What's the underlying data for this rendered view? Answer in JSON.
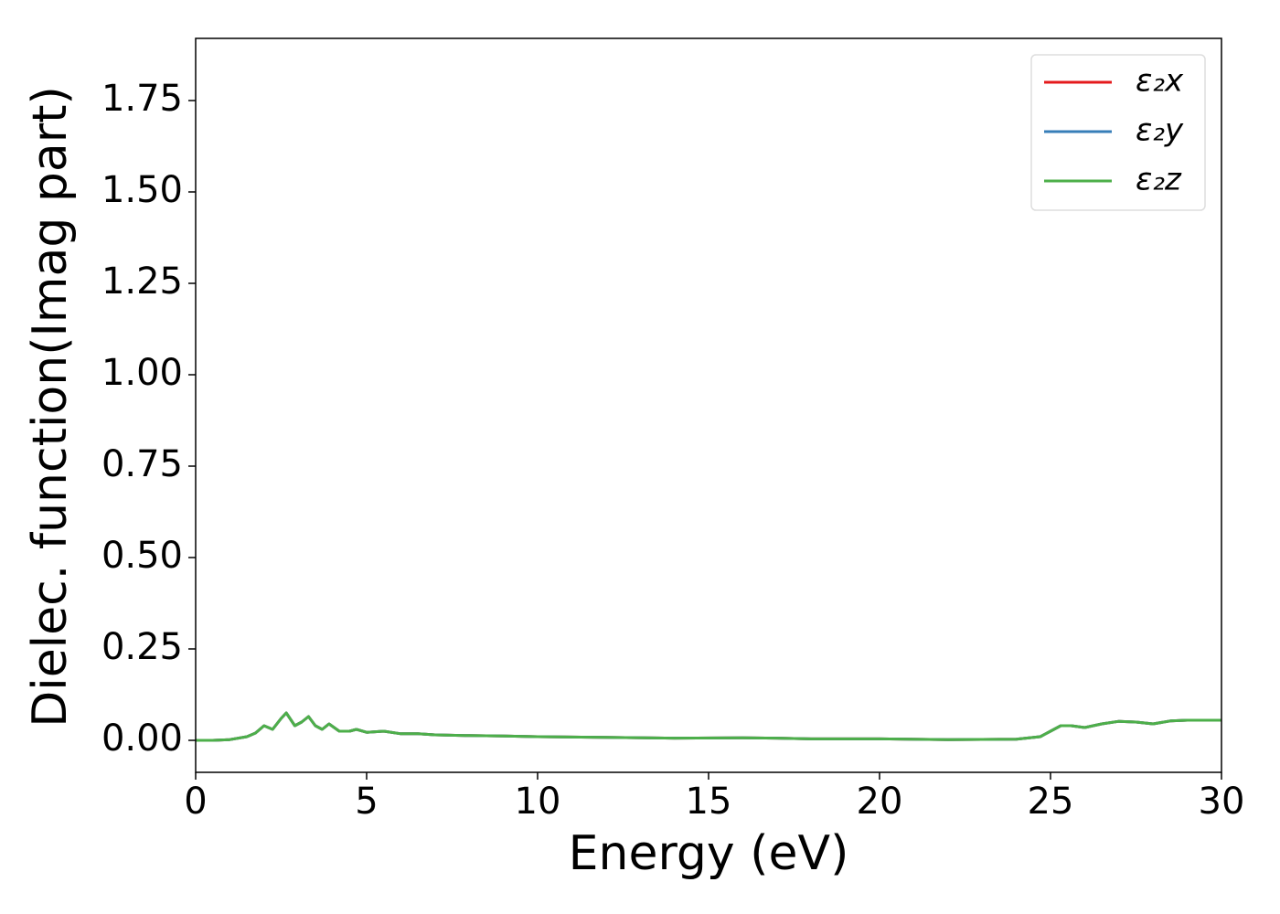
{
  "chart_data": {
    "type": "line",
    "xlabel": "Energy (eV)",
    "ylabel": "Dielec. function(Imag part)",
    "x": [
      0,
      0.5,
      1.0,
      1.5,
      1.75,
      2.0,
      2.25,
      2.5,
      2.65,
      2.9,
      3.1,
      3.3,
      3.5,
      3.7,
      3.9,
      4.2,
      4.5,
      4.7,
      5.0,
      5.5,
      6.0,
      6.5,
      7,
      8,
      9,
      10,
      12,
      14,
      16,
      17,
      18,
      20,
      22,
      24,
      24.7,
      25,
      25.3,
      25.6,
      26,
      26.5,
      27,
      27.5,
      28,
      28.5,
      29,
      30
    ],
    "series": [
      {
        "name": "ε₂x",
        "color": "#e41a1c",
        "values": [
          0.0,
          0.0,
          0.002,
          0.01,
          0.02,
          0.04,
          0.03,
          0.06,
          0.075,
          0.04,
          0.05,
          0.065,
          0.04,
          0.03,
          0.045,
          0.025,
          0.025,
          0.03,
          0.022,
          0.025,
          0.018,
          0.018,
          0.015,
          0.013,
          0.012,
          0.01,
          0.008,
          0.006,
          0.007,
          0.006,
          0.004,
          0.004,
          0.002,
          0.003,
          0.01,
          0.025,
          0.04,
          0.04,
          0.035,
          0.045,
          0.052,
          0.05,
          0.045,
          0.053,
          0.055,
          0.055
        ]
      },
      {
        "name": "ε₂y",
        "color": "#377eb8",
        "values": [
          0.0,
          0.0,
          0.002,
          0.01,
          0.02,
          0.04,
          0.03,
          0.06,
          0.075,
          0.04,
          0.05,
          0.065,
          0.04,
          0.03,
          0.045,
          0.025,
          0.025,
          0.03,
          0.022,
          0.025,
          0.018,
          0.018,
          0.015,
          0.013,
          0.012,
          0.01,
          0.008,
          0.006,
          0.007,
          0.006,
          0.004,
          0.004,
          0.002,
          0.003,
          0.01,
          0.025,
          0.04,
          0.04,
          0.035,
          0.045,
          0.052,
          0.05,
          0.045,
          0.053,
          0.055,
          0.055
        ]
      },
      {
        "name": "ε₂z",
        "color": "#4daf4a",
        "values": [
          0.0,
          0.0,
          0.002,
          0.01,
          0.02,
          0.04,
          0.03,
          0.06,
          0.075,
          0.04,
          0.05,
          0.065,
          0.04,
          0.03,
          0.045,
          0.025,
          0.025,
          0.03,
          0.022,
          0.025,
          0.018,
          0.018,
          0.015,
          0.013,
          0.012,
          0.01,
          0.008,
          0.006,
          0.007,
          0.006,
          0.004,
          0.004,
          0.002,
          0.003,
          0.01,
          0.025,
          0.04,
          0.04,
          0.035,
          0.045,
          0.052,
          0.05,
          0.045,
          0.053,
          0.055,
          0.055
        ]
      }
    ],
    "xlim": [
      0,
      30
    ],
    "xticks": [
      0,
      5,
      10,
      15,
      20,
      25,
      30
    ],
    "ylim": [
      -0.0875,
      1.92
    ],
    "yticks": [
      {
        "value": 0,
        "label": "0.00"
      },
      {
        "value": 0.25,
        "label": "0.25"
      },
      {
        "value": 0.5,
        "label": "0.50"
      },
      {
        "value": 0.75,
        "label": "0.75"
      },
      {
        "value": 1.0,
        "label": "1.00"
      },
      {
        "value": 1.25,
        "label": "1.25"
      },
      {
        "value": 1.5,
        "label": "1.50"
      },
      {
        "value": 1.75,
        "label": "1.75"
      }
    ],
    "legend": "upper right",
    "grid": false
  }
}
